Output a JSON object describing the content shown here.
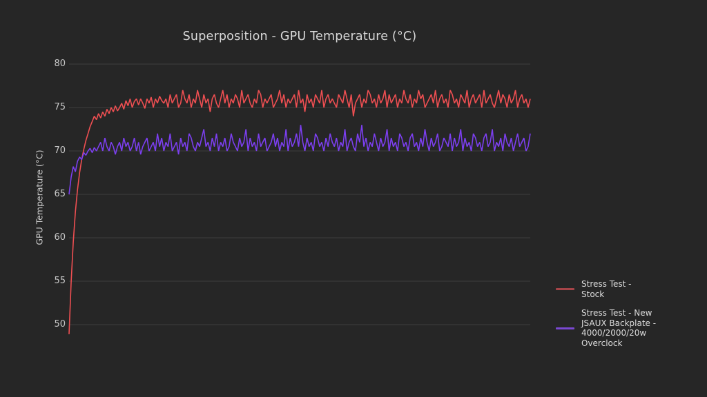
{
  "colors": {
    "background": "#262626",
    "grid": "#3d3d3d",
    "title_text": "#d9d9d9",
    "tick_text": "#c9c9c9",
    "legend_text": "#dcdcdc"
  },
  "chart_data": {
    "type": "line",
    "title": "Superposition - GPU Temperature (°C)",
    "ylabel": "GPU Temperature (°C)",
    "xlabel": "",
    "yticks": [
      80,
      75,
      70,
      65,
      60,
      55,
      50
    ],
    "ylim": [
      48.5,
      81
    ],
    "xticks": [],
    "grid": "horizontal",
    "legend_position": "right",
    "series": [
      {
        "id": "stock",
        "name": "Stress Test -\nStock",
        "color": "#ef4f52",
        "legend_color": "#a64448",
        "values": [
          48.9,
          55.0,
          59.5,
          63.0,
          65.5,
          67.5,
          69.0,
          70.2,
          71.2,
          72.0,
          72.8,
          73.4,
          74.0,
          73.6,
          74.3,
          73.8,
          74.5,
          74.0,
          74.8,
          74.3,
          75.0,
          74.5,
          75.2,
          74.6,
          75.0,
          75.5,
          74.8,
          75.8,
          75.2,
          76.0,
          75.0,
          75.7,
          76.0,
          75.3,
          76.0,
          75.5,
          74.9,
          76.0,
          75.5,
          76.2,
          75.0,
          76.0,
          75.5,
          76.3,
          75.8,
          75.5,
          76.0,
          75.0,
          76.5,
          75.5,
          76.0,
          76.5,
          75.0,
          75.5,
          77.0,
          76.0,
          75.5,
          76.5,
          75.0,
          76.0,
          75.5,
          77.0,
          76.0,
          75.0,
          76.5,
          75.5,
          76.0,
          74.5,
          76.0,
          76.5,
          75.5,
          75.0,
          76.0,
          77.0,
          75.5,
          76.5,
          75.0,
          76.0,
          75.5,
          76.5,
          76.0,
          75.0,
          77.0,
          75.5,
          76.0,
          76.5,
          75.5,
          75.0,
          76.0,
          75.5,
          77.0,
          76.5,
          75.0,
          76.0,
          75.5,
          76.0,
          76.5,
          75.0,
          75.5,
          76.0,
          77.0,
          75.5,
          76.5,
          75.0,
          76.0,
          75.5,
          76.0,
          76.5,
          75.0,
          77.0,
          75.5,
          76.0,
          74.5,
          76.5,
          75.5,
          76.0,
          75.0,
          76.5,
          76.0,
          75.5,
          77.0,
          75.0,
          76.0,
          76.5,
          75.5,
          76.0,
          75.5,
          75.0,
          76.5,
          76.0,
          75.5,
          77.0,
          76.0,
          75.0,
          76.5,
          74.0,
          75.5,
          76.0,
          76.5,
          75.0,
          76.0,
          75.5,
          77.0,
          76.5,
          75.5,
          76.0,
          75.0,
          76.5,
          75.5,
          76.0,
          77.0,
          75.0,
          76.5,
          75.5,
          76.0,
          76.5,
          75.0,
          76.0,
          75.5,
          77.0,
          76.0,
          75.5,
          76.5,
          75.0,
          76.0,
          75.5,
          77.0,
          76.0,
          76.5,
          75.0,
          75.5,
          76.0,
          76.5,
          75.5,
          77.0,
          75.0,
          76.0,
          76.5,
          75.5,
          76.0,
          75.0,
          77.0,
          76.5,
          75.5,
          76.0,
          75.0,
          76.5,
          76.0,
          75.5,
          77.0,
          75.0,
          76.0,
          76.5,
          75.5,
          76.0,
          76.5,
          75.0,
          77.0,
          75.5,
          76.0,
          76.5,
          75.5,
          75.0,
          76.0,
          77.0,
          75.5,
          76.5,
          76.0,
          75.0,
          76.5,
          75.5,
          76.0,
          77.0,
          75.0,
          76.0,
          76.5,
          75.5,
          76.0,
          75.0,
          76.0
        ]
      },
      {
        "id": "jsaux-overclock",
        "name": "Stress Test - New\nJSAUX Backplate -\n4000/2000/20w\nOverclock",
        "color": "#7c3ff0",
        "legend_color": "#7a48d2",
        "values": [
          65.0,
          67.0,
          68.2,
          67.6,
          68.8,
          69.3,
          69.0,
          69.8,
          69.5,
          70.0,
          70.3,
          69.8,
          70.4,
          70.0,
          70.5,
          71.0,
          70.0,
          71.5,
          70.5,
          70.0,
          71.0,
          70.5,
          69.6,
          70.5,
          71.0,
          70.0,
          71.5,
          70.5,
          71.0,
          70.0,
          70.5,
          71.5,
          70.0,
          71.0,
          69.6,
          70.5,
          71.0,
          71.5,
          70.0,
          70.5,
          71.0,
          70.0,
          72.0,
          70.5,
          71.5,
          70.0,
          71.0,
          70.5,
          72.0,
          70.0,
          70.5,
          71.0,
          69.6,
          71.5,
          70.5,
          71.0,
          70.0,
          72.0,
          71.5,
          70.5,
          70.0,
          71.0,
          70.5,
          71.5,
          72.5,
          70.5,
          71.0,
          70.0,
          71.5,
          70.5,
          72.0,
          70.0,
          71.0,
          70.5,
          71.5,
          70.0,
          70.5,
          72.0,
          71.0,
          70.5,
          70.0,
          71.5,
          70.5,
          71.0,
          72.5,
          70.0,
          71.5,
          70.5,
          71.0,
          70.0,
          72.0,
          70.5,
          71.0,
          71.5,
          70.0,
          70.5,
          71.0,
          72.0,
          70.5,
          71.5,
          70.0,
          71.0,
          70.5,
          72.5,
          70.0,
          71.5,
          70.5,
          71.0,
          72.0,
          70.5,
          73.0,
          71.0,
          70.0,
          71.5,
          70.5,
          71.0,
          70.0,
          72.0,
          71.5,
          70.5,
          71.0,
          70.0,
          71.5,
          70.5,
          72.0,
          71.0,
          70.5,
          71.5,
          70.0,
          71.0,
          70.5,
          72.5,
          70.0,
          71.0,
          71.5,
          70.5,
          70.0,
          72.0,
          71.0,
          73.0,
          70.5,
          71.5,
          70.0,
          71.0,
          70.5,
          72.0,
          71.0,
          70.0,
          71.5,
          70.5,
          71.0,
          72.5,
          70.0,
          71.5,
          70.5,
          71.0,
          70.0,
          72.0,
          71.5,
          70.5,
          71.0,
          70.0,
          71.5,
          72.0,
          70.5,
          71.0,
          70.0,
          71.5,
          70.5,
          72.5,
          71.0,
          70.0,
          71.5,
          70.5,
          71.0,
          72.0,
          70.0,
          70.5,
          71.5,
          71.0,
          70.5,
          72.0,
          70.0,
          71.5,
          70.5,
          71.0,
          72.5,
          70.0,
          71.5,
          70.5,
          71.0,
          70.0,
          72.0,
          71.5,
          70.5,
          71.0,
          70.0,
          71.5,
          72.0,
          70.5,
          71.0,
          72.5,
          70.0,
          71.0,
          70.5,
          71.5,
          70.0,
          72.0,
          71.0,
          70.5,
          71.5,
          70.0,
          71.0,
          72.0,
          70.5,
          71.0,
          71.5,
          70.0,
          70.5,
          72.0
        ]
      }
    ]
  }
}
